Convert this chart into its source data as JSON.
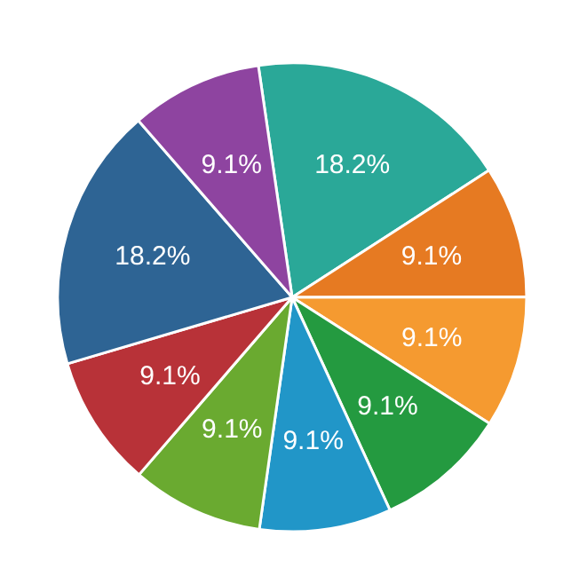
{
  "chart_data": {
    "type": "pie",
    "categories": [
      null,
      null,
      null,
      null,
      null,
      null,
      null,
      null,
      null
    ],
    "values": [
      18.2,
      9.1,
      9.1,
      9.1,
      9.1,
      9.1,
      9.1,
      18.2,
      9.1
    ],
    "colors": [
      "#2aa898",
      "#e67a22",
      "#f59a30",
      "#249a40",
      "#2196c8",
      "#6aaa30",
      "#b83238",
      "#2e6494",
      "#8e44a0"
    ],
    "value_labels": [
      "18.2%",
      "9.1%",
      "9.1%",
      "9.1%",
      "9.1%",
      "9.1%",
      "9.1%",
      "18.2%",
      "9.1%"
    ]
  }
}
